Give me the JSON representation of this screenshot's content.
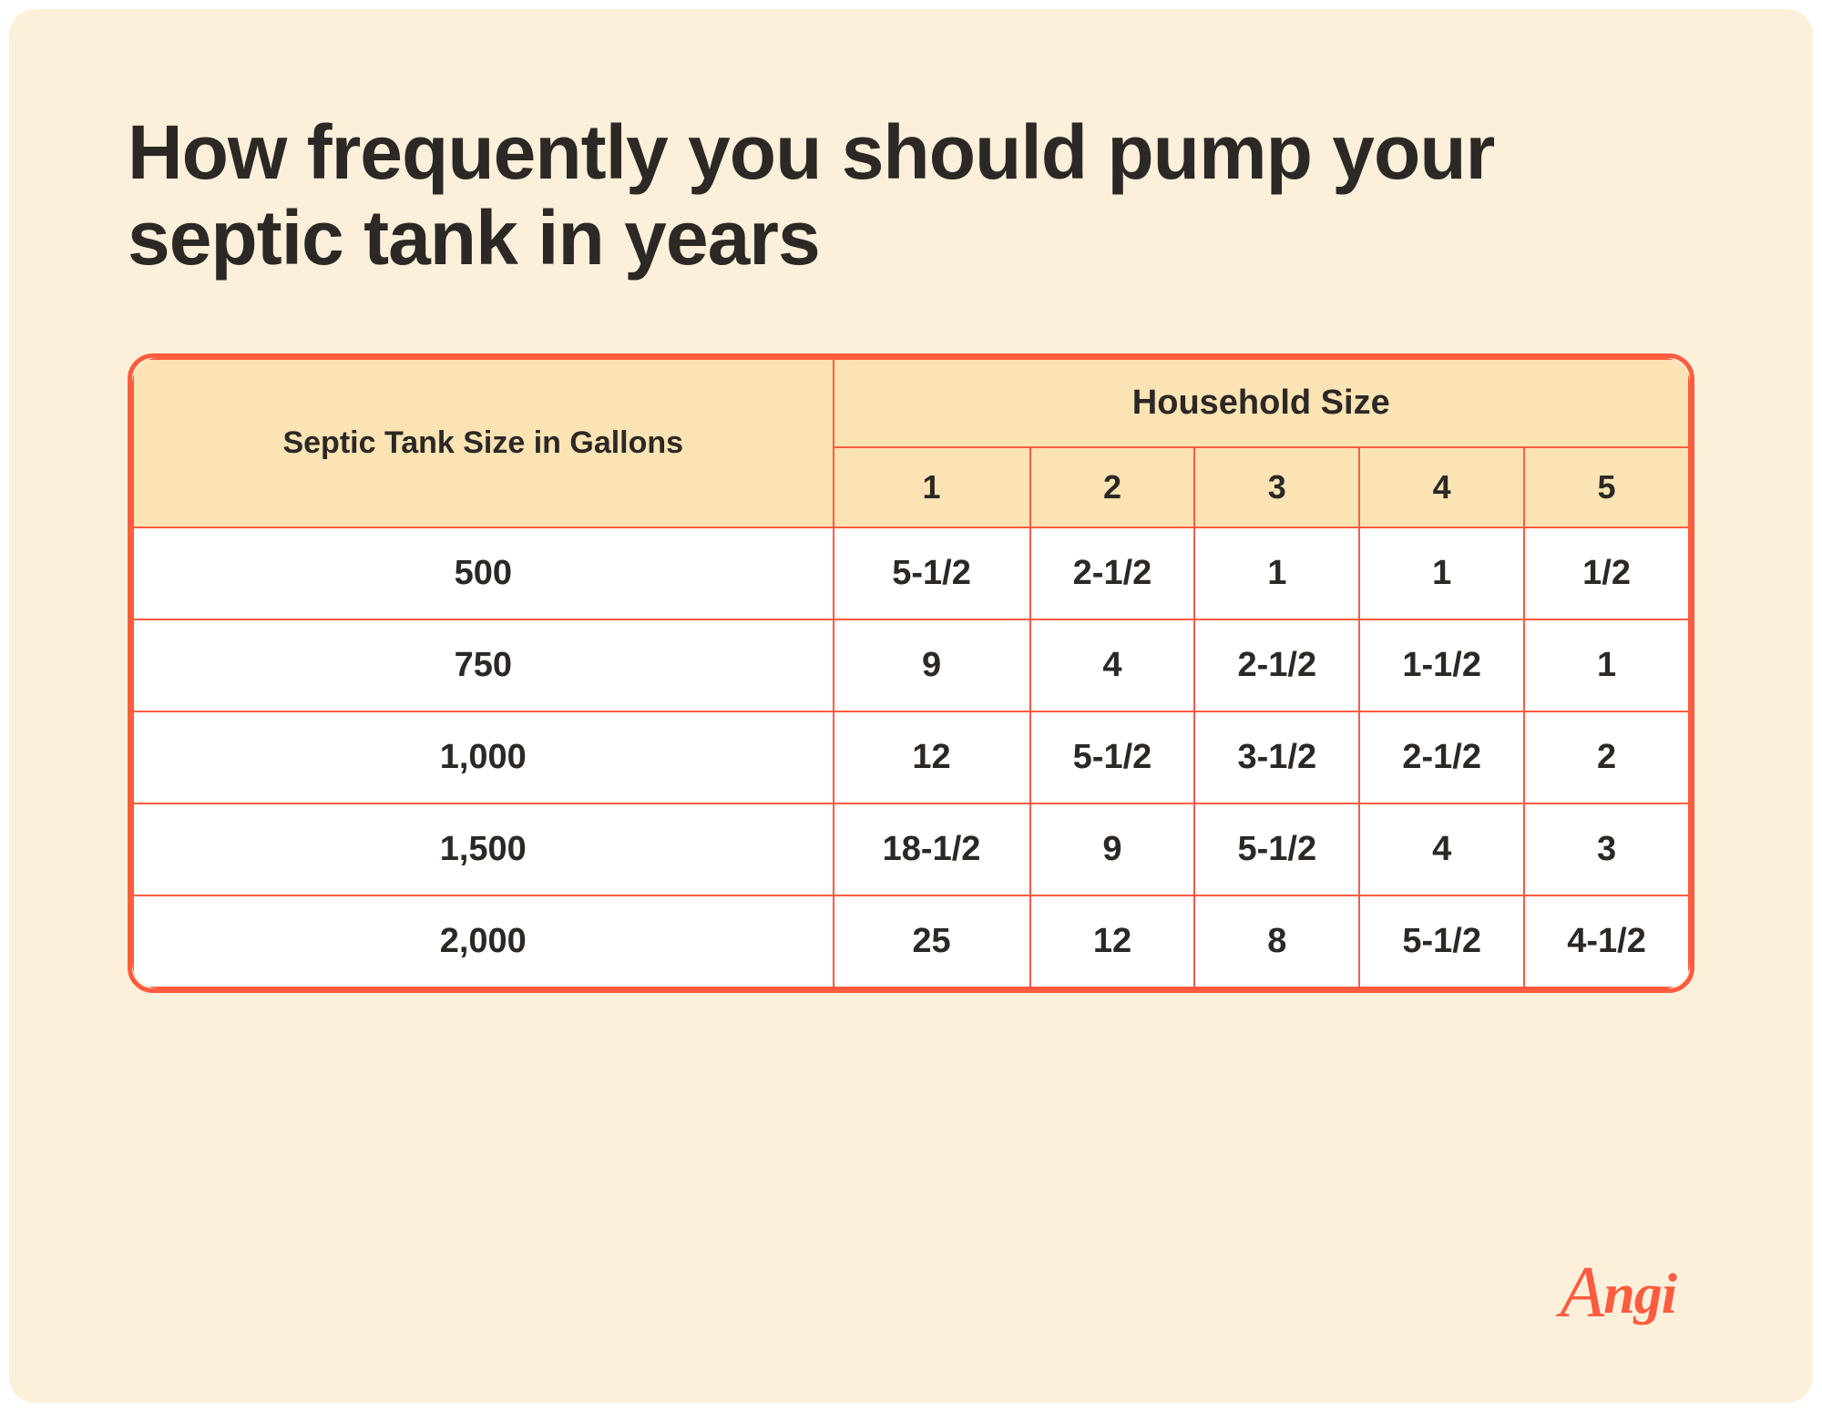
{
  "colors": {
    "card_bg": "#fcf0db",
    "header_bg": "#fce3b4",
    "cell_bg": "#ffffff",
    "border": "#ff5b3f",
    "title": "#2b2825",
    "logo": "#ff5b3f"
  },
  "title": "How frequently you should pump your septic tank in years",
  "table": {
    "row_header_label": "Septic Tank Size in Gallons",
    "col_header_label": "Household Size",
    "columns": [
      "1",
      "2",
      "3",
      "4",
      "5"
    ],
    "rows": [
      {
        "size": "500",
        "values": [
          "5-1/2",
          "2-1/2",
          "1",
          "1",
          "1/2"
        ]
      },
      {
        "size": "750",
        "values": [
          "9",
          "4",
          "2-1/2",
          "1-1/2",
          "1"
        ]
      },
      {
        "size": "1,000",
        "values": [
          "12",
          "5-1/2",
          "3-1/2",
          "2-1/2",
          "2"
        ]
      },
      {
        "size": "1,500",
        "values": [
          "18-1/2",
          "9",
          "5-1/2",
          "4",
          "3"
        ]
      },
      {
        "size": "2,000",
        "values": [
          "25",
          "12",
          "8",
          "5-1/2",
          "4-1/2"
        ]
      }
    ]
  },
  "logo": {
    "text": "Angi"
  }
}
